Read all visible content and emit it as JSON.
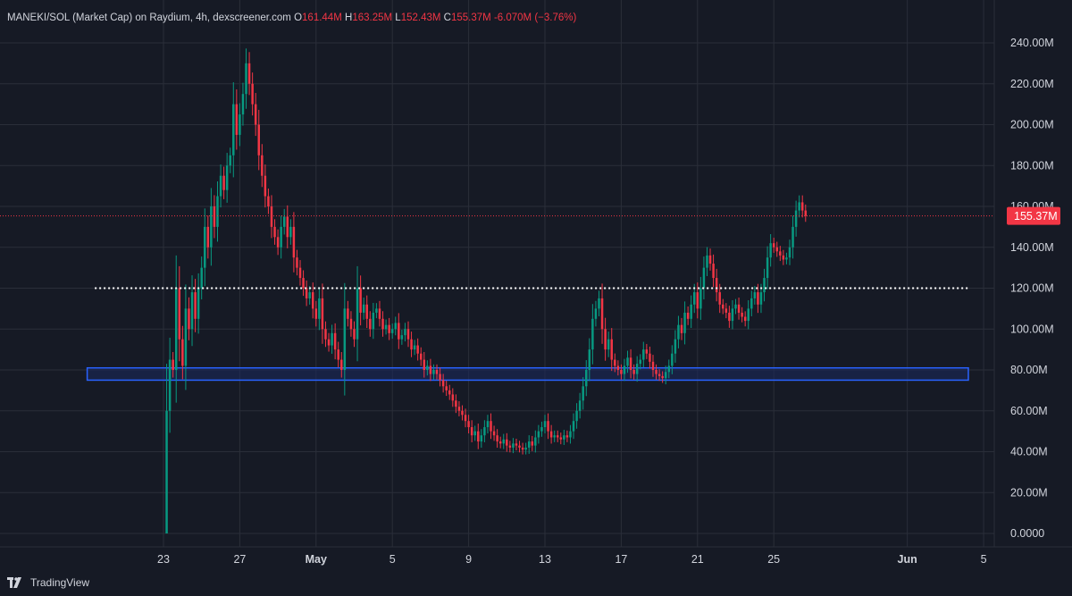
{
  "header": {
    "title": "MANEKI/SOL (Market Cap) on Raydium, 4h, dexscreener.com",
    "o_label": "O",
    "o_value": "161.44M",
    "h_label": "H",
    "h_value": "163.25M",
    "l_label": "L",
    "l_value": "152.43M",
    "c_label": "C",
    "c_value": "155.37M",
    "change": "-6.070M (−3.76%)"
  },
  "footer": {
    "brand": "TradingView",
    "logo_icon": "tradingview-logo-icon"
  },
  "colors": {
    "background": "#161a25",
    "grid": "#2a2e39",
    "up": "#089981",
    "down": "#f23645",
    "zone_stroke": "#2962ff",
    "zone_fill": "#1c2a5e",
    "text": "#d1d4dc"
  },
  "chart_data": {
    "type": "candlestick",
    "title": "MANEKI/SOL (Market Cap) on Raydium, 4h",
    "ylim": [
      0,
      250
    ],
    "y_unit": "M",
    "y_ticks": [
      "240.00M",
      "220.00M",
      "200.00M",
      "180.00M",
      "160.00M",
      "140.00M",
      "120.00M",
      "100.00M",
      "80.00M",
      "60.00M",
      "40.00M",
      "20.00M",
      "0.0000"
    ],
    "y_tick_values": [
      240,
      220,
      200,
      180,
      160,
      140,
      120,
      100,
      80,
      60,
      40,
      20,
      0
    ],
    "x_ticks": [
      {
        "label": "23",
        "day": 23
      },
      {
        "label": "27",
        "day": 27
      },
      {
        "label": "May",
        "day": 31
      },
      {
        "label": "5",
        "day": 35
      },
      {
        "label": "9",
        "day": 39
      },
      {
        "label": "13",
        "day": 43
      },
      {
        "label": "17",
        "day": 47
      },
      {
        "label": "21",
        "day": 51
      },
      {
        "label": "25",
        "day": 55
      },
      {
        "label": "Jun",
        "day": 62
      },
      {
        "label": "5",
        "day": 66
      }
    ],
    "x_tick_bold": [
      "May",
      "Jun"
    ],
    "last_price": 155.37,
    "last_price_label": "155.37M",
    "horizontal_line": 120,
    "support_zone": [
      75,
      81
    ],
    "zone_x_range_days": [
      19.0,
      65.2
    ],
    "hline_x_range_days": [
      19.4,
      65.2
    ],
    "start_day": 23.0,
    "candles_per_day": 6,
    "closes": [
      0,
      60,
      85,
      80,
      120,
      95,
      82,
      110,
      100,
      118,
      105,
      120,
      130,
      150,
      140,
      160,
      150,
      165,
      175,
      168,
      180,
      185,
      210,
      195,
      205,
      215,
      230,
      220,
      210,
      200,
      185,
      175,
      165,
      160,
      150,
      145,
      140,
      150,
      155,
      145,
      150,
      135,
      130,
      125,
      120,
      115,
      118,
      110,
      105,
      115,
      100,
      95,
      92,
      98,
      90,
      85,
      80,
      110,
      105,
      100,
      95,
      120,
      108,
      112,
      105,
      100,
      108,
      110,
      105,
      100,
      102,
      98,
      100,
      103,
      95,
      97,
      100,
      95,
      90,
      92,
      88,
      85,
      80,
      82,
      78,
      80,
      78,
      75,
      72,
      70,
      68,
      65,
      62,
      60,
      58,
      55,
      52,
      48,
      50,
      45,
      48,
      52,
      55,
      50,
      48,
      45,
      44,
      46,
      43,
      42,
      44,
      43,
      42,
      41,
      42,
      45,
      43,
      47,
      50,
      52,
      55,
      50,
      47,
      48,
      47,
      46,
      48,
      47,
      50,
      55,
      60,
      65,
      72,
      80,
      90,
      105,
      110,
      115,
      100,
      90,
      95,
      85,
      82,
      80,
      78,
      82,
      86,
      80,
      78,
      83,
      85,
      90,
      88,
      84,
      80,
      78,
      77,
      76,
      79,
      82,
      88,
      95,
      102,
      98,
      108,
      105,
      112,
      118,
      110,
      120,
      130,
      136,
      132,
      125,
      118,
      112,
      110,
      108,
      104,
      110,
      112,
      108,
      106,
      104,
      110,
      115,
      118,
      112,
      118,
      125,
      135,
      142,
      140,
      138,
      136,
      134,
      135,
      140,
      150,
      158,
      162,
      158,
      155.37
    ]
  }
}
